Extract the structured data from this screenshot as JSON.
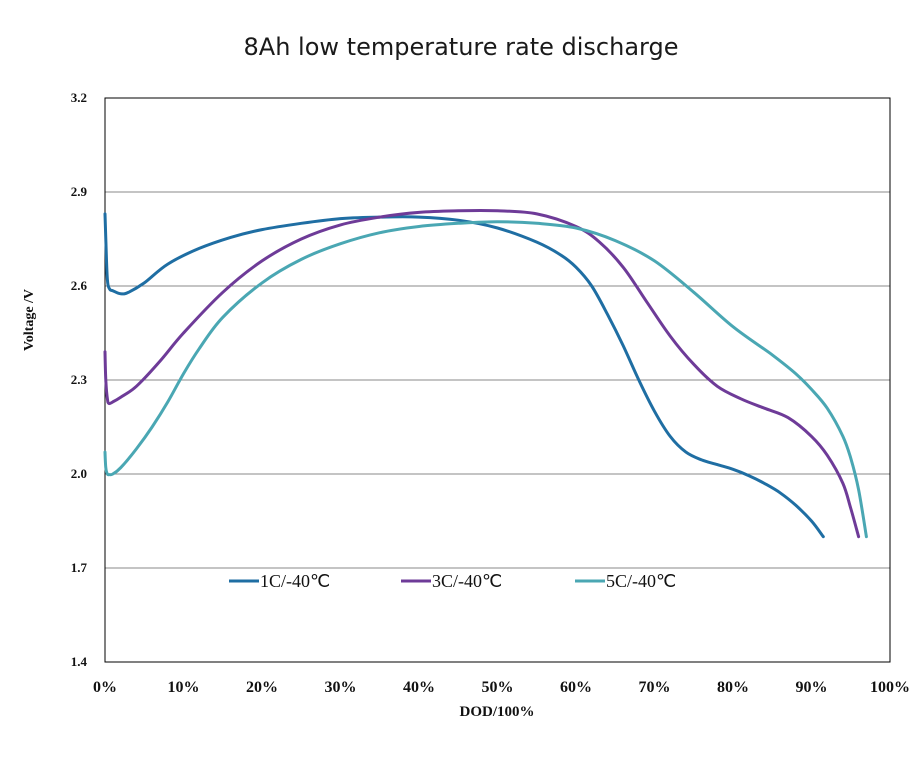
{
  "chart_data": {
    "type": "line",
    "title": "8Ah low temperature rate discharge",
    "xlabel": "DOD/100%",
    "ylabel": "Voltage /V",
    "xlim": [
      0,
      100
    ],
    "ylim": [
      1.4,
      3.2
    ],
    "x_ticks": [
      0,
      10,
      20,
      30,
      40,
      50,
      60,
      70,
      80,
      90,
      100
    ],
    "x_tick_labels": [
      "0%",
      "10%",
      "20%",
      "30%",
      "40%",
      "50%",
      "60%",
      "70%",
      "80%",
      "90%",
      "100%"
    ],
    "y_ticks": [
      1.4,
      1.7,
      2.0,
      2.3,
      2.6,
      2.9,
      3.2
    ],
    "y_tick_labels": [
      "1.4",
      "1.7",
      "2.0",
      "2.3",
      "2.6",
      "2.9",
      "3.2"
    ],
    "grid": "horizontal",
    "legend_position": "bottom",
    "series": [
      {
        "name": "1C/-40℃",
        "color": "#1f6ea3",
        "x": [
          0,
          0.1,
          0.3,
          0.6,
          1,
          2,
          3,
          5,
          8,
          12,
          16,
          20,
          25,
          30,
          35,
          40,
          45,
          50,
          55,
          58,
          60,
          62,
          64,
          66,
          68,
          70,
          72,
          74,
          76,
          78,
          80,
          82,
          84,
          86,
          88,
          90,
          91.5
        ],
        "y": [
          2.83,
          2.75,
          2.62,
          2.59,
          2.585,
          2.575,
          2.58,
          2.61,
          2.67,
          2.72,
          2.755,
          2.78,
          2.8,
          2.815,
          2.82,
          2.82,
          2.81,
          2.785,
          2.74,
          2.7,
          2.66,
          2.6,
          2.51,
          2.41,
          2.3,
          2.2,
          2.12,
          2.07,
          2.045,
          2.03,
          2.015,
          1.995,
          1.97,
          1.94,
          1.9,
          1.85,
          1.8
        ]
      },
      {
        "name": "3C/-40℃",
        "color": "#6e3b98",
        "x": [
          0,
          0.1,
          0.3,
          0.5,
          1,
          2,
          4,
          7,
          10,
          15,
          20,
          25,
          30,
          35,
          40,
          45,
          50,
          55,
          60,
          63,
          66,
          69,
          72,
          75,
          78,
          81,
          84,
          87,
          90,
          92,
          94,
          95,
          96
        ],
        "y": [
          2.39,
          2.3,
          2.24,
          2.225,
          2.23,
          2.245,
          2.28,
          2.36,
          2.45,
          2.58,
          2.68,
          2.75,
          2.795,
          2.82,
          2.835,
          2.84,
          2.84,
          2.83,
          2.79,
          2.74,
          2.66,
          2.55,
          2.44,
          2.35,
          2.28,
          2.24,
          2.21,
          2.18,
          2.12,
          2.06,
          1.97,
          1.89,
          1.8
        ]
      },
      {
        "name": "5C/-40℃",
        "color": "#4aa7b3",
        "x": [
          0,
          0.1,
          0.3,
          0.6,
          1,
          2,
          4,
          6,
          8,
          10,
          12,
          15,
          20,
          25,
          30,
          35,
          40,
          45,
          50,
          55,
          60,
          65,
          70,
          75,
          80,
          85,
          88,
          90,
          92,
          94,
          95,
          96,
          97
        ],
        "y": [
          2.07,
          2.02,
          2.0,
          1.998,
          2.0,
          2.02,
          2.08,
          2.15,
          2.23,
          2.32,
          2.4,
          2.5,
          2.61,
          2.685,
          2.735,
          2.77,
          2.79,
          2.8,
          2.805,
          2.8,
          2.785,
          2.745,
          2.68,
          2.58,
          2.47,
          2.38,
          2.32,
          2.27,
          2.21,
          2.12,
          2.05,
          1.95,
          1.8
        ]
      }
    ]
  }
}
